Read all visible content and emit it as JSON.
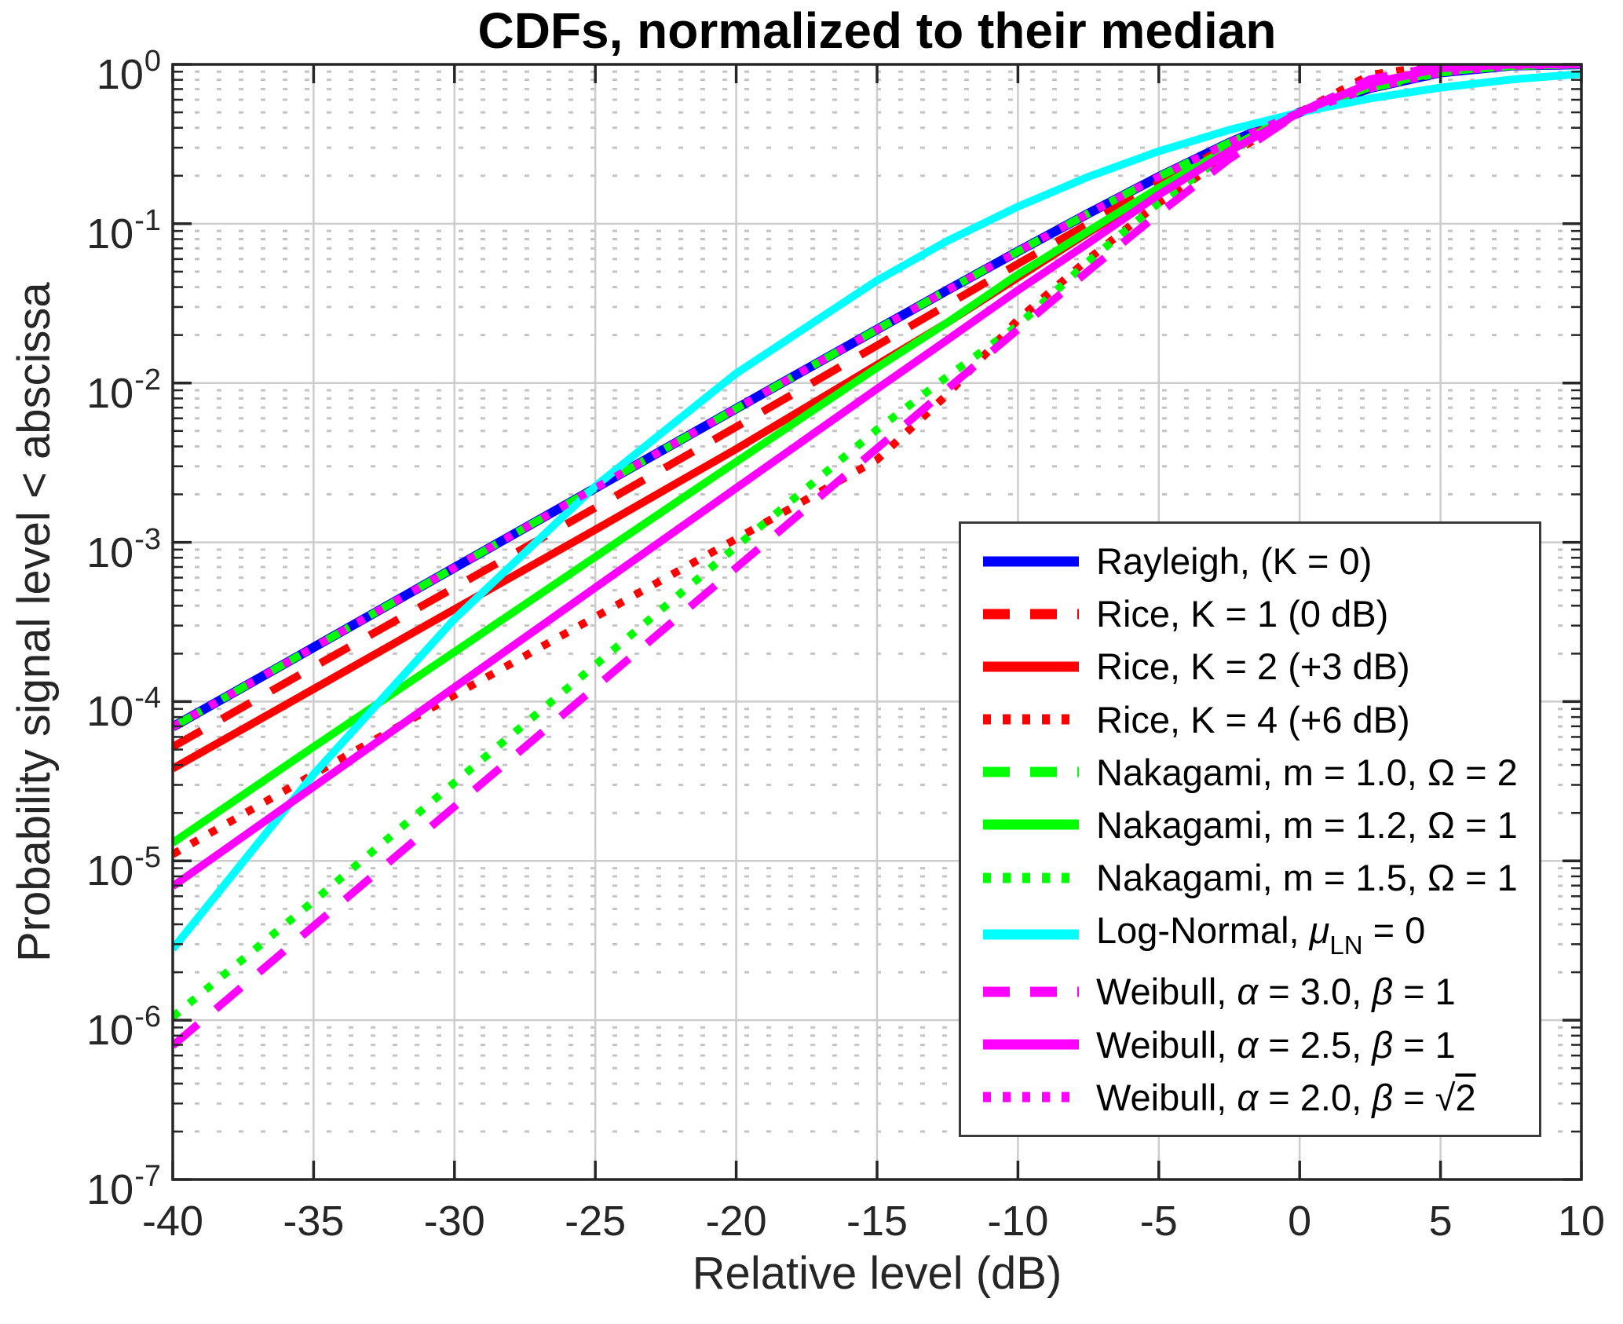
{
  "figure": {
    "title": "CDFs, normalized to their median",
    "xlabel": "Relative level (dB)",
    "ylabel": "Probability signal level < abscissa"
  },
  "colors": {
    "blue": "#0000ff",
    "red": "#ff0000",
    "green": "#00ff00",
    "cyan": "#00ffff",
    "magenta": "#ff00ff",
    "axis": "#262626",
    "grid_major": "#cccccc",
    "grid_minor": "#c4c4c4",
    "legend_border": "#3a3a3a"
  },
  "chart_data": {
    "type": "line",
    "title": "CDFs, normalized to their median",
    "xlabel": "Relative level (dB)",
    "ylabel": "Probability signal level < abscissa",
    "xlim": [
      -40,
      10
    ],
    "ylim": [
      1e-07,
      1
    ],
    "y_scale": "log10",
    "grid": {
      "major": "solid",
      "minor_y": "dotted",
      "minor_x": "none"
    },
    "legend_position": "inside lower right",
    "x_tick_labels": [
      "-40",
      "-35",
      "-30",
      "-25",
      "-20",
      "-15",
      "-10",
      "-5",
      "0",
      "5",
      "10"
    ],
    "x_tick_values": [
      -40,
      -35,
      -30,
      -25,
      -20,
      -15,
      -10,
      -5,
      0,
      5,
      10
    ],
    "y_tick_exponents": [
      "0",
      "-1",
      "-2",
      "-3",
      "-4",
      "-5",
      "-6",
      "-7"
    ],
    "x": [
      -40,
      -35,
      -30,
      -25,
      -20,
      -15,
      -12.5,
      -10,
      -7.5,
      -5,
      -2.5,
      0,
      2.5,
      5,
      7.5,
      10
    ],
    "series": [
      {
        "name": "Rayleigh, (K = 0)",
        "color": "#0000ff",
        "style": "solid",
        "label_segments": [
          {
            "t": "Rayleigh, (K = 0)"
          }
        ],
        "values": [
          6.93e-05,
          0.000219,
          0.000693,
          0.00219,
          0.00691,
          0.0217,
          0.0383,
          0.067,
          0.116,
          0.197,
          0.323,
          0.5,
          0.708,
          0.888,
          0.98,
          0.999
        ]
      },
      {
        "name": "Rice, K = 1 (0 dB)",
        "color": "#ff0000",
        "style": "dashed",
        "label_segments": [
          {
            "t": "Rice, K = 1 (0 dB)"
          }
        ],
        "values": [
          5.2e-05,
          0.000165,
          0.00052,
          0.00165,
          0.0053,
          0.0172,
          0.031,
          0.056,
          0.1,
          0.18,
          0.31,
          0.5,
          0.73,
          0.915,
          0.985,
          0.9995
        ]
      },
      {
        "name": "Rice, K = 2 (+3 dB)",
        "color": "#ff0000",
        "style": "solid",
        "label_segments": [
          {
            "t": "Rice, K = 2 (+3 dB)"
          }
        ],
        "values": [
          3.8e-05,
          0.00012,
          0.00038,
          0.0012,
          0.00385,
          0.013,
          0.024,
          0.046,
          0.088,
          0.165,
          0.3,
          0.5,
          0.76,
          0.945,
          0.992,
          0.9999
        ]
      },
      {
        "name": "Rice, K = 4 (+6 dB)",
        "color": "#ff0000",
        "style": "dotted",
        "label_segments": [
          {
            "t": "Rice, K = 4 (+6 dB)"
          }
        ],
        "values": [
          1.1e-05,
          3.5e-05,
          0.00011,
          0.00034,
          0.00105,
          0.0033,
          0.0085,
          0.025,
          0.06,
          0.135,
          0.27,
          0.5,
          0.86,
          0.994,
          0.9999,
          1.0
        ]
      },
      {
        "name": "Nakagami, m = 1.0, Ω = 2",
        "color": "#00ff00",
        "style": "dashed",
        "label_segments": [
          {
            "t": "Nakagami, m = 1.0, "
          },
          {
            "t": "Ω"
          },
          {
            "t": " = 2"
          }
        ],
        "values": [
          6.93e-05,
          0.000219,
          0.000693,
          0.00219,
          0.00691,
          0.0217,
          0.0383,
          0.067,
          0.116,
          0.197,
          0.323,
          0.5,
          0.708,
          0.888,
          0.98,
          0.999
        ]
      },
      {
        "name": "Nakagami, m = 1.2, Ω = 1",
        "color": "#00ff00",
        "style": "solid",
        "label_segments": [
          {
            "t": "Nakagami, m = 1.2, "
          },
          {
            "t": "Ω"
          },
          {
            "t": " = 1"
          }
        ],
        "values": [
          1.3e-05,
          5.2e-05,
          0.000205,
          0.00081,
          0.0032,
          0.0125,
          0.024,
          0.048,
          0.09,
          0.168,
          0.3,
          0.5,
          0.72,
          0.9,
          0.975,
          0.998
        ]
      },
      {
        "name": "Nakagami, m = 1.5, Ω = 1",
        "color": "#00ff00",
        "style": "dotted",
        "label_segments": [
          {
            "t": "Nakagami, m = 1.5, "
          },
          {
            "t": "Ω"
          },
          {
            "t": " = 1"
          }
        ],
        "values": [
          1.05e-06,
          5.6e-06,
          3.1e-05,
          0.00017,
          0.00094,
          0.0051,
          0.011,
          0.023,
          0.058,
          0.135,
          0.28,
          0.5,
          0.76,
          0.95,
          0.995,
          0.9999
        ]
      },
      {
        "name": "Log-Normal, μ_LN = 0",
        "color": "#00ffff",
        "style": "solid",
        "label_segments": [
          {
            "t": "Log-Normal, "
          },
          {
            "t": "μ",
            "i": 1
          },
          {
            "t": "LN",
            "sub": 1
          },
          {
            "t": " = 0"
          }
        ],
        "values": [
          2.8e-06,
          3.5e-05,
          0.00033,
          0.00225,
          0.0115,
          0.044,
          0.078,
          0.128,
          0.197,
          0.285,
          0.388,
          0.5,
          0.612,
          0.715,
          0.803,
          0.872
        ]
      },
      {
        "name": "Weibull, α = 3.0, β = 1",
        "color": "#ff00ff",
        "style": "dashed",
        "label_segments": [
          {
            "t": "Weibull, "
          },
          {
            "t": "α",
            "i": 1
          },
          {
            "t": " = 3.0, "
          },
          {
            "t": "β",
            "i": 1
          },
          {
            "t": " = 1"
          }
        ],
        "values": [
          6.93e-07,
          3.9e-06,
          2.19e-05,
          0.000123,
          0.000693,
          0.00389,
          0.0092,
          0.0217,
          0.0505,
          0.116,
          0.254,
          0.5,
          0.807,
          0.98,
          0.9999,
          1.0
        ]
      },
      {
        "name": "Weibull, α = 2.5, β = 1",
        "color": "#ff00ff",
        "style": "solid",
        "label_segments": [
          {
            "t": "Weibull, "
          },
          {
            "t": "α",
            "i": 1
          },
          {
            "t": " = 2.5, "
          },
          {
            "t": "β",
            "i": 1
          },
          {
            "t": " = 1"
          }
        ],
        "values": [
          6.93e-06,
          2.92e-05,
          0.000123,
          0.00052,
          0.00219,
          0.0092,
          0.0187,
          0.0382,
          0.0755,
          0.152,
          0.285,
          0.5,
          0.759,
          0.946,
          0.9975,
          0.9999
        ]
      },
      {
        "name": "Weibull, α = 2.0, β = √2",
        "color": "#ff00ff",
        "style": "dotted",
        "label_segments": [
          {
            "t": "Weibull, "
          },
          {
            "t": "α",
            "i": 1
          },
          {
            "t": " = 2.0, "
          },
          {
            "t": "β",
            "i": 1
          },
          {
            "t": " = "
          },
          {
            "t": "√"
          },
          {
            "t": "2",
            "root": 1
          }
        ],
        "values": [
          6.93e-05,
          0.000219,
          0.000693,
          0.00219,
          0.00691,
          0.0217,
          0.0383,
          0.067,
          0.116,
          0.197,
          0.323,
          0.5,
          0.708,
          0.888,
          0.98,
          0.999
        ]
      }
    ]
  }
}
